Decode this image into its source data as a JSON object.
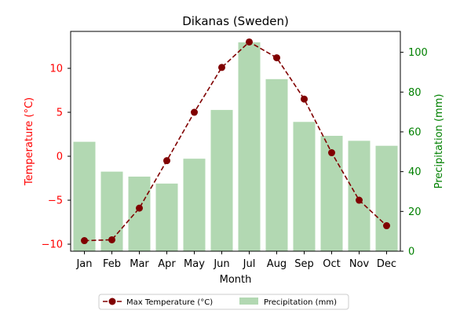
{
  "chart_data": {
    "type": "bar+line",
    "title": "Dikanas (Sweden)",
    "xlabel": "Month",
    "ylabel_left": "Temperature (°C)",
    "ylabel_right": "Precipitation (mm)",
    "categories": [
      "Jan",
      "Feb",
      "Mar",
      "Apr",
      "May",
      "Jun",
      "Jul",
      "Aug",
      "Sep",
      "Oct",
      "Nov",
      "Dec"
    ],
    "y_left": {
      "range": [
        -10.8,
        14.2
      ],
      "ticks": [
        -10,
        -5,
        0,
        5,
        10
      ],
      "tick_labels": [
        "−10",
        "−5",
        "0",
        "5",
        "10"
      ]
    },
    "y_right": {
      "range": [
        0,
        110.5
      ],
      "ticks": [
        0,
        20,
        40,
        60,
        80,
        100
      ],
      "tick_labels": [
        "0",
        "20",
        "40",
        "60",
        "80",
        "100"
      ]
    },
    "grid": false,
    "legend_placement": "bottom-center",
    "series": [
      {
        "name": "Max Temperature (°C)",
        "kind": "line",
        "axis": "left",
        "color": "#800000",
        "style": "dashed with circle markers",
        "values": [
          -9.6,
          -9.5,
          -5.9,
          -0.5,
          5.0,
          10.1,
          13.0,
          11.2,
          6.5,
          0.4,
          -5.0,
          -7.9
        ]
      },
      {
        "name": "Precipitation (mm)",
        "kind": "bar",
        "axis": "right",
        "color": "#b2d8b2",
        "values": [
          55,
          40,
          37.5,
          34,
          46.5,
          71,
          105,
          86.5,
          65,
          58,
          55.5,
          53
        ]
      }
    ],
    "left_axis_color": "#ff0000",
    "right_axis_color": "#008000"
  }
}
